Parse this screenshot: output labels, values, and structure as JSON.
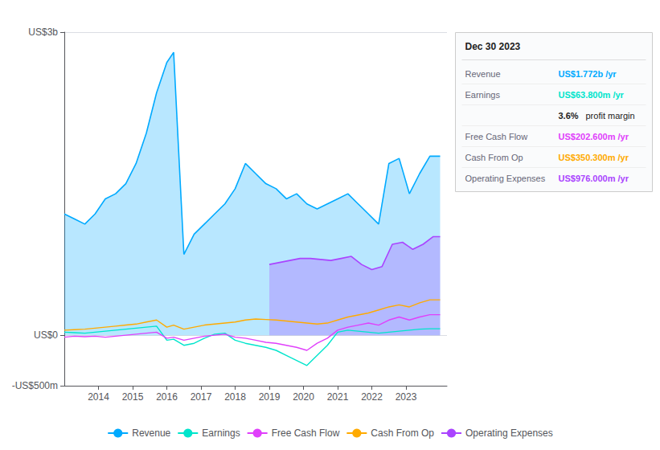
{
  "chart_data": {
    "type": "line",
    "xlim": [
      2013.0,
      2024.2
    ],
    "xticks": [
      2014,
      2015,
      2016,
      2017,
      2018,
      2019,
      2020,
      2021,
      2022,
      2023
    ],
    "ylim": [
      -500,
      3000
    ],
    "yticks": [
      {
        "value": -500,
        "label": "-US$500m"
      },
      {
        "value": 0,
        "label": "US$0"
      },
      {
        "value": 3000,
        "label": "US$3b"
      }
    ],
    "grid": true,
    "legend": "bottom",
    "series": [
      {
        "name": "Revenue",
        "type": "area",
        "color": "#00aaff",
        "x": [
          2013.0,
          2013.3,
          2013.6,
          2013.9,
          2014.2,
          2014.5,
          2014.8,
          2015.1,
          2015.4,
          2015.7,
          2016.0,
          2016.2,
          2016.5,
          2016.8,
          2017.1,
          2017.4,
          2017.7,
          2018.0,
          2018.3,
          2018.6,
          2018.9,
          2019.2,
          2019.5,
          2019.8,
          2020.1,
          2020.4,
          2020.7,
          2021.0,
          2021.3,
          2021.6,
          2021.9,
          2022.2,
          2022.5,
          2022.8,
          2023.1,
          2023.4,
          2023.7,
          2024.0
        ],
        "values": [
          1200,
          1150,
          1100,
          1200,
          1350,
          1400,
          1500,
          1700,
          2000,
          2400,
          2700,
          2800,
          800,
          1000,
          1100,
          1200,
          1300,
          1450,
          1700,
          1600,
          1500,
          1450,
          1350,
          1400,
          1300,
          1250,
          1300,
          1350,
          1400,
          1300,
          1200,
          1100,
          1700,
          1750,
          1400,
          1600,
          1772,
          1772
        ]
      },
      {
        "name": "Earnings",
        "type": "line",
        "color": "#00e5cc",
        "x": [
          2013.0,
          2013.3,
          2013.6,
          2013.9,
          2014.2,
          2014.5,
          2014.8,
          2015.1,
          2015.4,
          2015.7,
          2016.0,
          2016.2,
          2016.5,
          2016.8,
          2017.1,
          2017.4,
          2017.7,
          2018.0,
          2018.3,
          2018.6,
          2018.9,
          2019.2,
          2019.5,
          2019.8,
          2020.1,
          2020.4,
          2020.7,
          2021.0,
          2021.3,
          2021.6,
          2021.9,
          2022.2,
          2022.5,
          2022.8,
          2023.1,
          2023.4,
          2023.7,
          2024.0
        ],
        "values": [
          30,
          25,
          20,
          30,
          40,
          50,
          60,
          70,
          80,
          90,
          -50,
          -40,
          -100,
          -80,
          -30,
          10,
          20,
          -50,
          -80,
          -100,
          -120,
          -150,
          -200,
          -250,
          -300,
          -200,
          -100,
          30,
          50,
          40,
          30,
          20,
          30,
          40,
          50,
          60,
          63.8,
          63.8
        ]
      },
      {
        "name": "Free Cash Flow",
        "type": "line",
        "color": "#e040fb",
        "x": [
          2013.0,
          2013.3,
          2013.6,
          2013.9,
          2014.2,
          2014.5,
          2014.8,
          2015.1,
          2015.4,
          2015.7,
          2016.0,
          2016.2,
          2016.5,
          2016.8,
          2017.1,
          2017.4,
          2017.7,
          2018.0,
          2018.3,
          2018.6,
          2018.9,
          2019.2,
          2019.5,
          2019.8,
          2020.1,
          2020.4,
          2020.7,
          2021.0,
          2021.3,
          2021.6,
          2021.9,
          2022.2,
          2022.5,
          2022.8,
          2023.1,
          2023.4,
          2023.7,
          2024.0
        ],
        "values": [
          -20,
          -10,
          -15,
          -10,
          -20,
          -10,
          0,
          10,
          20,
          30,
          -30,
          -20,
          -50,
          -30,
          -10,
          0,
          10,
          -20,
          -30,
          -50,
          -70,
          -80,
          -100,
          -120,
          -150,
          -80,
          -30,
          50,
          80,
          100,
          120,
          100,
          150,
          180,
          150,
          180,
          202.6,
          202.6
        ]
      },
      {
        "name": "Cash From Op",
        "type": "line",
        "color": "#ffaa00",
        "x": [
          2013.0,
          2013.3,
          2013.6,
          2013.9,
          2014.2,
          2014.5,
          2014.8,
          2015.1,
          2015.4,
          2015.7,
          2016.0,
          2016.2,
          2016.5,
          2016.8,
          2017.1,
          2017.4,
          2017.7,
          2018.0,
          2018.3,
          2018.6,
          2018.9,
          2019.2,
          2019.5,
          2019.8,
          2020.1,
          2020.4,
          2020.7,
          2021.0,
          2021.3,
          2021.6,
          2021.9,
          2022.2,
          2022.5,
          2022.8,
          2023.1,
          2023.4,
          2023.7,
          2024.0
        ],
        "values": [
          50,
          55,
          60,
          70,
          80,
          90,
          100,
          110,
          130,
          150,
          80,
          100,
          60,
          80,
          100,
          110,
          120,
          130,
          150,
          160,
          155,
          150,
          140,
          130,
          120,
          110,
          120,
          150,
          180,
          200,
          220,
          250,
          280,
          300,
          280,
          320,
          350.3,
          350.3
        ]
      },
      {
        "name": "Operating Expenses",
        "type": "area",
        "color": "#aa44ff",
        "x": [
          2019.0,
          2019.3,
          2019.6,
          2019.9,
          2020.2,
          2020.5,
          2020.8,
          2021.1,
          2021.4,
          2021.7,
          2022.0,
          2022.3,
          2022.6,
          2022.9,
          2023.2,
          2023.5,
          2023.8,
          2024.0
        ],
        "values": [
          700,
          720,
          740,
          760,
          760,
          750,
          740,
          760,
          780,
          700,
          650,
          680,
          900,
          920,
          850,
          900,
          976,
          976
        ]
      }
    ],
    "annotations": {
      "title": "Dec 30 2023",
      "rows": [
        {
          "label": "Revenue",
          "text": "US$1.772b /yr",
          "color": "#00aaff"
        },
        {
          "label": "Earnings",
          "text": "US$63.800m /yr",
          "color": "#00e5cc"
        },
        {
          "text": "3.6%",
          "note": "profit margin"
        },
        {
          "label": "Free Cash Flow",
          "text": "US$202.600m /yr",
          "color": "#e040fb"
        },
        {
          "label": "Cash From Op",
          "text": "US$350.300m /yr",
          "color": "#ffaa00"
        },
        {
          "label": "Operating Expenses",
          "text": "US$976.000m /yr",
          "color": "#aa44ff"
        }
      ]
    }
  }
}
